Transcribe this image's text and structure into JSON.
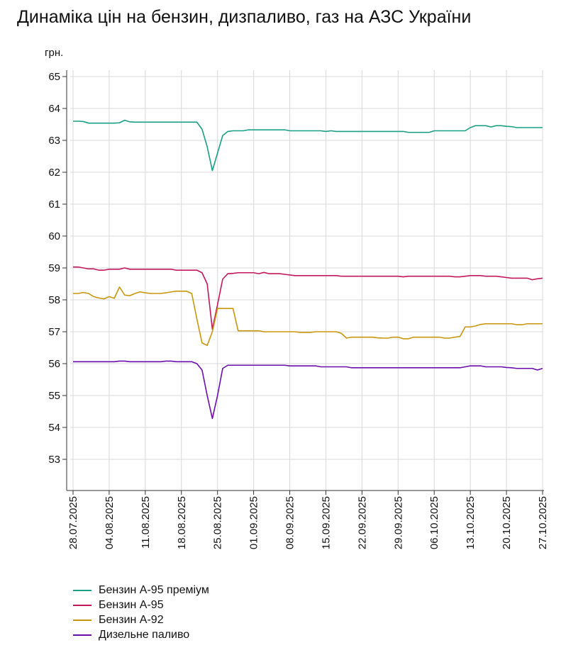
{
  "title": "Динаміка цін на бензин, дизпаливо, газ на АЗС України",
  "chart_data": {
    "type": "line",
    "ylabel": "грн.",
    "ylim": [
      52.2,
      65.2
    ],
    "yticks": [
      53,
      54,
      55,
      56,
      57,
      58,
      59,
      60,
      61,
      62,
      63,
      64,
      65
    ],
    "x_dates": [
      "28.07.2025",
      "29.07.2025",
      "30.07.2025",
      "31.07.2025",
      "01.08.2025",
      "02.08.2025",
      "03.08.2025",
      "04.08.2025",
      "05.08.2025",
      "06.08.2025",
      "07.08.2025",
      "08.08.2025",
      "09.08.2025",
      "10.08.2025",
      "11.08.2025",
      "12.08.2025",
      "13.08.2025",
      "14.08.2025",
      "15.08.2025",
      "16.08.2025",
      "17.08.2025",
      "18.08.2025",
      "19.08.2025",
      "20.08.2025",
      "21.08.2025",
      "22.08.2025",
      "23.08.2025",
      "24.08.2025",
      "25.08.2025",
      "26.08.2025",
      "27.08.2025",
      "28.08.2025",
      "29.08.2025",
      "30.08.2025",
      "31.08.2025",
      "01.09.2025",
      "02.09.2025",
      "03.09.2025",
      "04.09.2025",
      "05.09.2025",
      "06.09.2025",
      "07.09.2025",
      "08.09.2025",
      "09.09.2025",
      "10.09.2025",
      "11.09.2025",
      "12.09.2025",
      "13.09.2025",
      "14.09.2025",
      "15.09.2025",
      "16.09.2025",
      "17.09.2025",
      "18.09.2025",
      "19.09.2025",
      "20.09.2025",
      "21.09.2025",
      "22.09.2025",
      "23.09.2025",
      "24.09.2025",
      "25.09.2025",
      "26.09.2025",
      "27.09.2025",
      "28.09.2025",
      "29.09.2025",
      "30.09.2025",
      "01.10.2025",
      "02.10.2025",
      "03.10.2025",
      "04.10.2025",
      "05.10.2025",
      "06.10.2025",
      "07.10.2025",
      "08.10.2025",
      "09.10.2025",
      "10.10.2025",
      "11.10.2025",
      "12.10.2025",
      "13.10.2025",
      "14.10.2025",
      "15.10.2025",
      "16.10.2025",
      "17.10.2025",
      "18.10.2025",
      "19.10.2025",
      "20.10.2025",
      "21.10.2025",
      "22.10.2025",
      "23.10.2025",
      "24.10.2025",
      "25.10.2025",
      "26.10.2025",
      "27.10.2025"
    ],
    "x_tick_labels": [
      "28.07.2025",
      "04.08.2025",
      "11.08.2025",
      "18.08.2025",
      "25.08.2025",
      "01.09.2025",
      "08.09.2025",
      "15.09.2025",
      "22.09.2025",
      "29.09.2025",
      "06.10.2025",
      "13.10.2025",
      "20.10.2025",
      "27.10.2025"
    ],
    "grid": true,
    "legend_position": "bottom-left",
    "series": [
      {
        "name": "Бензин А-95 преміум",
        "color": "#1a9e85",
        "values": [
          63.6,
          63.6,
          63.59,
          63.54,
          63.54,
          63.54,
          63.54,
          63.54,
          63.54,
          63.55,
          63.63,
          63.58,
          63.57,
          63.57,
          63.57,
          63.57,
          63.57,
          63.57,
          63.57,
          63.57,
          63.57,
          63.57,
          63.57,
          63.57,
          63.57,
          63.35,
          62.8,
          62.05,
          62.6,
          63.15,
          63.28,
          63.3,
          63.3,
          63.3,
          63.33,
          63.33,
          63.33,
          63.33,
          63.33,
          63.33,
          63.33,
          63.33,
          63.3,
          63.3,
          63.3,
          63.3,
          63.3,
          63.3,
          63.3,
          63.28,
          63.3,
          63.28,
          63.28,
          63.28,
          63.28,
          63.28,
          63.28,
          63.28,
          63.28,
          63.28,
          63.28,
          63.28,
          63.28,
          63.28,
          63.28,
          63.25,
          63.25,
          63.25,
          63.25,
          63.25,
          63.3,
          63.3,
          63.3,
          63.3,
          63.3,
          63.3,
          63.3,
          63.4,
          63.46,
          63.46,
          63.46,
          63.42,
          63.46,
          63.46,
          63.44,
          63.43,
          63.4,
          63.4,
          63.4,
          63.4,
          63.4,
          63.4
        ]
      },
      {
        "name": "Бензин А-95",
        "color": "#c2185b",
        "values": [
          59.03,
          59.03,
          59.0,
          58.97,
          58.97,
          58.93,
          58.93,
          58.96,
          58.96,
          58.96,
          59.0,
          58.96,
          58.96,
          58.96,
          58.96,
          58.96,
          58.96,
          58.96,
          58.96,
          58.96,
          58.93,
          58.93,
          58.93,
          58.93,
          58.93,
          58.85,
          58.5,
          57.08,
          57.85,
          58.65,
          58.82,
          58.83,
          58.85,
          58.85,
          58.85,
          58.85,
          58.82,
          58.86,
          58.82,
          58.82,
          58.82,
          58.8,
          58.78,
          58.76,
          58.76,
          58.76,
          58.76,
          58.76,
          58.76,
          58.76,
          58.76,
          58.76,
          58.74,
          58.74,
          58.74,
          58.74,
          58.74,
          58.74,
          58.74,
          58.74,
          58.74,
          58.74,
          58.74,
          58.74,
          58.72,
          58.74,
          58.74,
          58.74,
          58.74,
          58.74,
          58.74,
          58.74,
          58.74,
          58.74,
          58.72,
          58.72,
          58.74,
          58.76,
          58.76,
          58.76,
          58.74,
          58.74,
          58.74,
          58.72,
          58.7,
          58.68,
          58.68,
          58.68,
          58.68,
          58.63,
          58.66,
          58.68
        ]
      },
      {
        "name": "Бензин А-92",
        "color": "#c8960c",
        "values": [
          58.2,
          58.2,
          58.23,
          58.2,
          58.1,
          58.06,
          58.03,
          58.1,
          58.05,
          58.4,
          58.15,
          58.13,
          58.2,
          58.25,
          58.22,
          58.2,
          58.2,
          58.2,
          58.22,
          58.25,
          58.27,
          58.27,
          58.27,
          58.2,
          57.4,
          56.65,
          56.57,
          57.0,
          57.73,
          57.73,
          57.73,
          57.73,
          57.03,
          57.03,
          57.03,
          57.03,
          57.03,
          57.0,
          57.0,
          57.0,
          57.0,
          57.0,
          57.0,
          57.0,
          56.98,
          56.98,
          56.98,
          57.0,
          57.0,
          57.0,
          57.0,
          57.0,
          56.95,
          56.8,
          56.83,
          56.83,
          56.83,
          56.83,
          56.83,
          56.81,
          56.8,
          56.8,
          56.83,
          56.83,
          56.78,
          56.78,
          56.83,
          56.83,
          56.83,
          56.83,
          56.83,
          56.83,
          56.8,
          56.8,
          56.83,
          56.85,
          57.15,
          57.15,
          57.18,
          57.23,
          57.25,
          57.25,
          57.25,
          57.25,
          57.25,
          57.25,
          57.22,
          57.22,
          57.25,
          57.25,
          57.25,
          57.25
        ]
      },
      {
        "name": "Дизельне паливо",
        "color": "#6a0dad",
        "values": [
          56.06,
          56.06,
          56.06,
          56.06,
          56.06,
          56.06,
          56.06,
          56.06,
          56.06,
          56.08,
          56.08,
          56.06,
          56.06,
          56.06,
          56.06,
          56.06,
          56.06,
          56.06,
          56.08,
          56.08,
          56.06,
          56.06,
          56.06,
          56.06,
          56.0,
          55.8,
          55.0,
          54.28,
          55.0,
          55.85,
          55.95,
          55.95,
          55.95,
          55.95,
          55.95,
          55.95,
          55.95,
          55.95,
          55.95,
          55.95,
          55.95,
          55.95,
          55.93,
          55.93,
          55.93,
          55.93,
          55.93,
          55.93,
          55.9,
          55.9,
          55.9,
          55.9,
          55.9,
          55.9,
          55.87,
          55.87,
          55.87,
          55.87,
          55.87,
          55.87,
          55.87,
          55.87,
          55.87,
          55.87,
          55.87,
          55.87,
          55.87,
          55.87,
          55.87,
          55.87,
          55.87,
          55.87,
          55.87,
          55.87,
          55.87,
          55.87,
          55.9,
          55.93,
          55.93,
          55.93,
          55.9,
          55.9,
          55.9,
          55.9,
          55.88,
          55.87,
          55.85,
          55.85,
          55.85,
          55.85,
          55.8,
          55.85
        ]
      }
    ]
  }
}
